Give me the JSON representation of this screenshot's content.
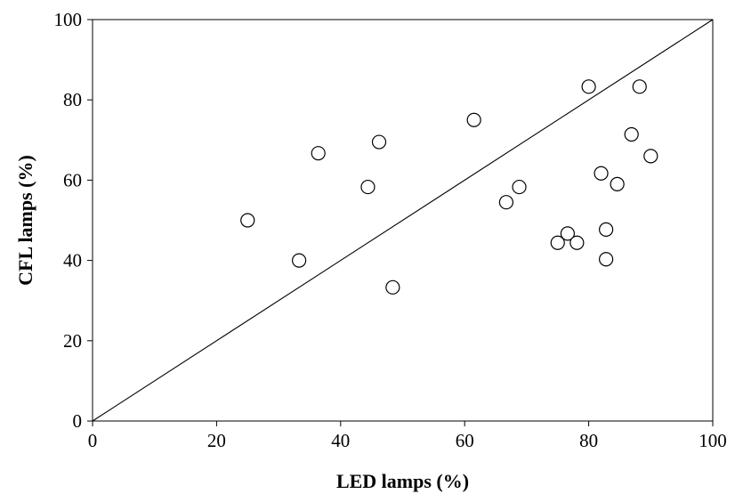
{
  "chart_data": {
    "type": "scatter",
    "title": "",
    "xlabel": "LED lamps (%)",
    "ylabel": "CFL lamps (%)",
    "xlim": [
      0,
      100
    ],
    "ylim": [
      0,
      100
    ],
    "xticks": [
      0,
      20,
      40,
      60,
      80,
      100
    ],
    "yticks": [
      0,
      20,
      40,
      60,
      80,
      100
    ],
    "grid": false,
    "legend": "none",
    "reference_line": {
      "type": "y=x",
      "from": [
        0,
        0
      ],
      "to": [
        100,
        100
      ]
    },
    "marker": {
      "shape": "open-circle",
      "edge_color": "#000000",
      "face_color": "#ffffff"
    },
    "series": [
      {
        "points": [
          {
            "x": 25.0,
            "y": 50.0
          },
          {
            "x": 33.3,
            "y": 40.0
          },
          {
            "x": 36.4,
            "y": 66.7
          },
          {
            "x": 44.4,
            "y": 58.3
          },
          {
            "x": 46.2,
            "y": 69.5
          },
          {
            "x": 48.4,
            "y": 33.3
          },
          {
            "x": 61.5,
            "y": 75.0
          },
          {
            "x": 66.7,
            "y": 54.5
          },
          {
            "x": 68.8,
            "y": 58.3
          },
          {
            "x": 75.0,
            "y": 44.4
          },
          {
            "x": 76.6,
            "y": 46.7
          },
          {
            "x": 78.1,
            "y": 44.4
          },
          {
            "x": 80.0,
            "y": 83.3
          },
          {
            "x": 82.0,
            "y": 61.7
          },
          {
            "x": 82.8,
            "y": 47.7
          },
          {
            "x": 82.8,
            "y": 40.3
          },
          {
            "x": 84.6,
            "y": 59.0
          },
          {
            "x": 86.9,
            "y": 71.4
          },
          {
            "x": 88.2,
            "y": 83.3
          },
          {
            "x": 90.0,
            "y": 66.0
          }
        ]
      }
    ]
  }
}
